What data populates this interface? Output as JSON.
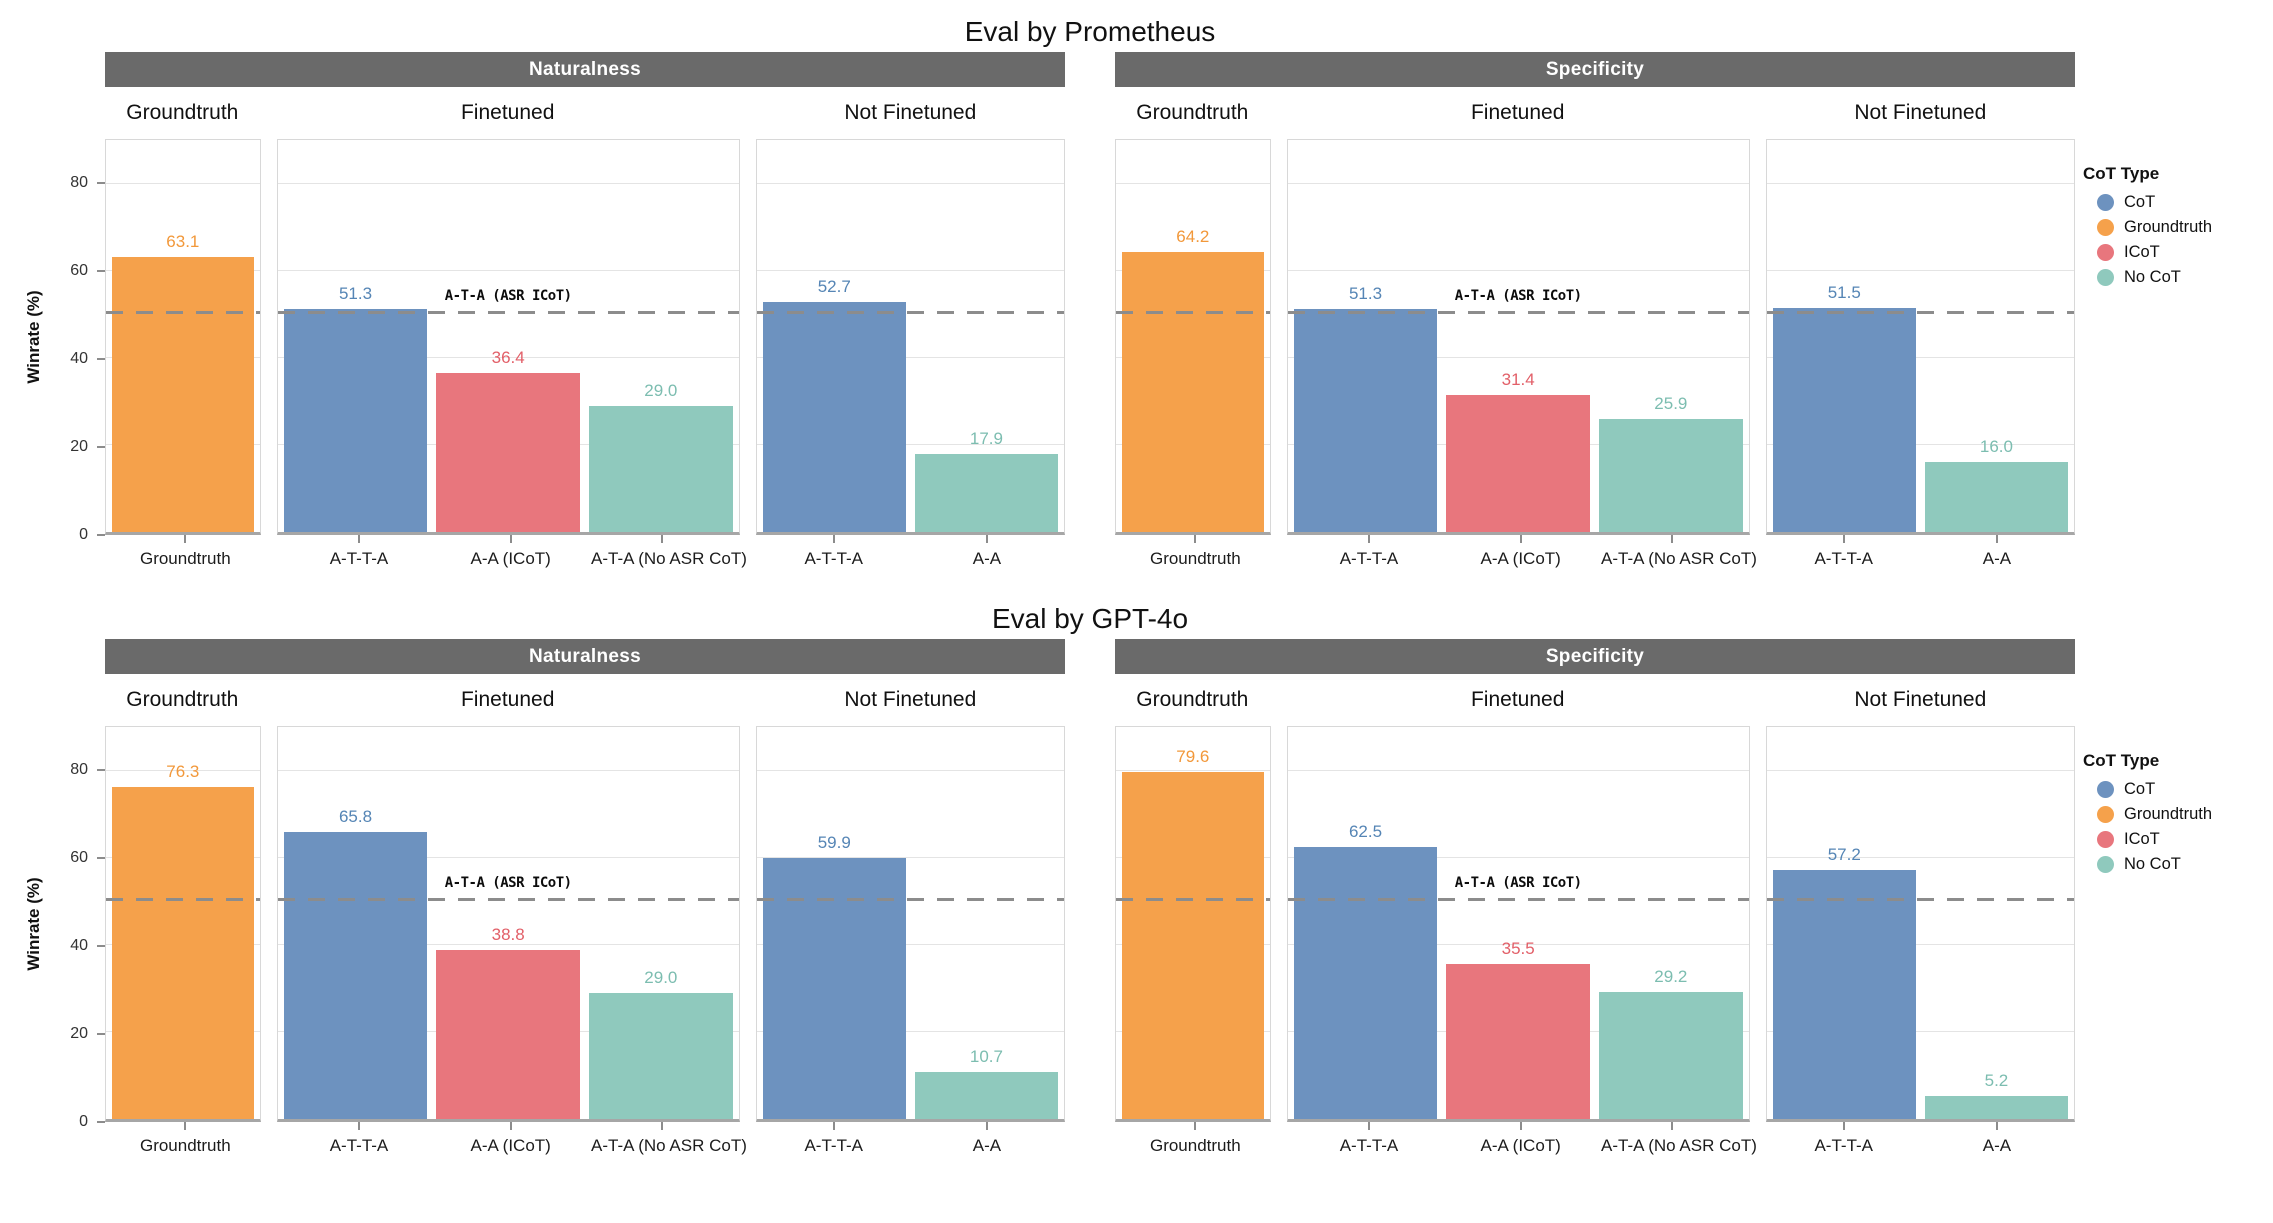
{
  "palette": {
    "header_bg": "#6a6a6a",
    "header_text": "#ffffff",
    "grid": "#e4e4e4",
    "panel_border": "#d8d8d8",
    "axis_line": "#a6a6a6",
    "ref_line": "#8c8c8c",
    "tick": "#8c8c8c"
  },
  "series_colors": {
    "CoT": {
      "bar": "#6d92bf",
      "label": "#5585b5"
    },
    "Groundtruth": {
      "bar": "#f5a14b",
      "label": "#f2983a"
    },
    "ICoT": {
      "bar": "#e8767d",
      "label": "#e25f68"
    },
    "No CoT": {
      "bar": "#8fc9bd",
      "label": "#7cbdb0"
    }
  },
  "legend": {
    "title": "CoT Type",
    "items": [
      {
        "label": "CoT",
        "series": "CoT"
      },
      {
        "label": "Groundtruth",
        "series": "Groundtruth"
      },
      {
        "label": "ICoT",
        "series": "ICoT"
      },
      {
        "label": "No CoT",
        "series": "No CoT"
      }
    ]
  },
  "y_axis": {
    "label": "Winrate (%)",
    "ticks": [
      0,
      20,
      40,
      60,
      80
    ],
    "max": 90
  },
  "reference_line": {
    "value": 50,
    "label": "A-T-A (ASR ICoT)"
  },
  "chart_data": [
    {
      "type": "bar",
      "title": "Eval by Prometheus",
      "ylabel": "Winrate (%)",
      "ylim": [
        0,
        90
      ],
      "facets": [
        {
          "label": "Naturalness",
          "panels": [
            {
              "label": "Groundtruth",
              "bars": [
                {
                  "category": "Groundtruth",
                  "series": "Groundtruth",
                  "value": 63.1
                }
              ]
            },
            {
              "label": "Finetuned",
              "show_ref_label": true,
              "bars": [
                {
                  "category": "A-T-T-A",
                  "series": "CoT",
                  "value": 51.3
                },
                {
                  "category": "A-A (ICoT)",
                  "series": "ICoT",
                  "value": 36.4
                },
                {
                  "category": "A-T-A (No ASR CoT)",
                  "series": "No CoT",
                  "value": 29.0
                }
              ]
            },
            {
              "label": "Not Finetuned",
              "bars": [
                {
                  "category": "A-T-T-A",
                  "series": "CoT",
                  "value": 52.7
                },
                {
                  "category": "A-A",
                  "series": "No CoT",
                  "value": 17.9
                }
              ]
            }
          ]
        },
        {
          "label": "Specificity",
          "panels": [
            {
              "label": "Groundtruth",
              "bars": [
                {
                  "category": "Groundtruth",
                  "series": "Groundtruth",
                  "value": 64.2
                }
              ]
            },
            {
              "label": "Finetuned",
              "show_ref_label": true,
              "bars": [
                {
                  "category": "A-T-T-A",
                  "series": "CoT",
                  "value": 51.3
                },
                {
                  "category": "A-A (ICoT)",
                  "series": "ICoT",
                  "value": 31.4
                },
                {
                  "category": "A-T-A (No ASR CoT)",
                  "series": "No CoT",
                  "value": 25.9
                }
              ]
            },
            {
              "label": "Not Finetuned",
              "bars": [
                {
                  "category": "A-T-T-A",
                  "series": "CoT",
                  "value": 51.5
                },
                {
                  "category": "A-A",
                  "series": "No CoT",
                  "value": 16.0
                }
              ]
            }
          ]
        }
      ]
    },
    {
      "type": "bar",
      "title": "Eval by GPT-4o",
      "ylabel": "Winrate (%)",
      "ylim": [
        0,
        90
      ],
      "facets": [
        {
          "label": "Naturalness",
          "panels": [
            {
              "label": "Groundtruth",
              "bars": [
                {
                  "category": "Groundtruth",
                  "series": "Groundtruth",
                  "value": 76.3
                }
              ]
            },
            {
              "label": "Finetuned",
              "show_ref_label": true,
              "bars": [
                {
                  "category": "A-T-T-A",
                  "series": "CoT",
                  "value": 65.8
                },
                {
                  "category": "A-A (ICoT)",
                  "series": "ICoT",
                  "value": 38.8
                },
                {
                  "category": "A-T-A (No ASR CoT)",
                  "series": "No CoT",
                  "value": 29.0
                }
              ]
            },
            {
              "label": "Not Finetuned",
              "bars": [
                {
                  "category": "A-T-T-A",
                  "series": "CoT",
                  "value": 59.9
                },
                {
                  "category": "A-A",
                  "series": "No CoT",
                  "value": 10.7
                }
              ]
            }
          ]
        },
        {
          "label": "Specificity",
          "panels": [
            {
              "label": "Groundtruth",
              "bars": [
                {
                  "category": "Groundtruth",
                  "series": "Groundtruth",
                  "value": 79.6
                }
              ]
            },
            {
              "label": "Finetuned",
              "show_ref_label": true,
              "bars": [
                {
                  "category": "A-T-T-A",
                  "series": "CoT",
                  "value": 62.5
                },
                {
                  "category": "A-A (ICoT)",
                  "series": "ICoT",
                  "value": 35.5
                },
                {
                  "category": "A-T-A (No ASR CoT)",
                  "series": "No CoT",
                  "value": 29.2
                }
              ]
            },
            {
              "label": "Not Finetuned",
              "bars": [
                {
                  "category": "A-T-T-A",
                  "series": "CoT",
                  "value": 57.2
                },
                {
                  "category": "A-A",
                  "series": "No CoT",
                  "value": 5.2
                }
              ]
            }
          ]
        }
      ]
    }
  ]
}
